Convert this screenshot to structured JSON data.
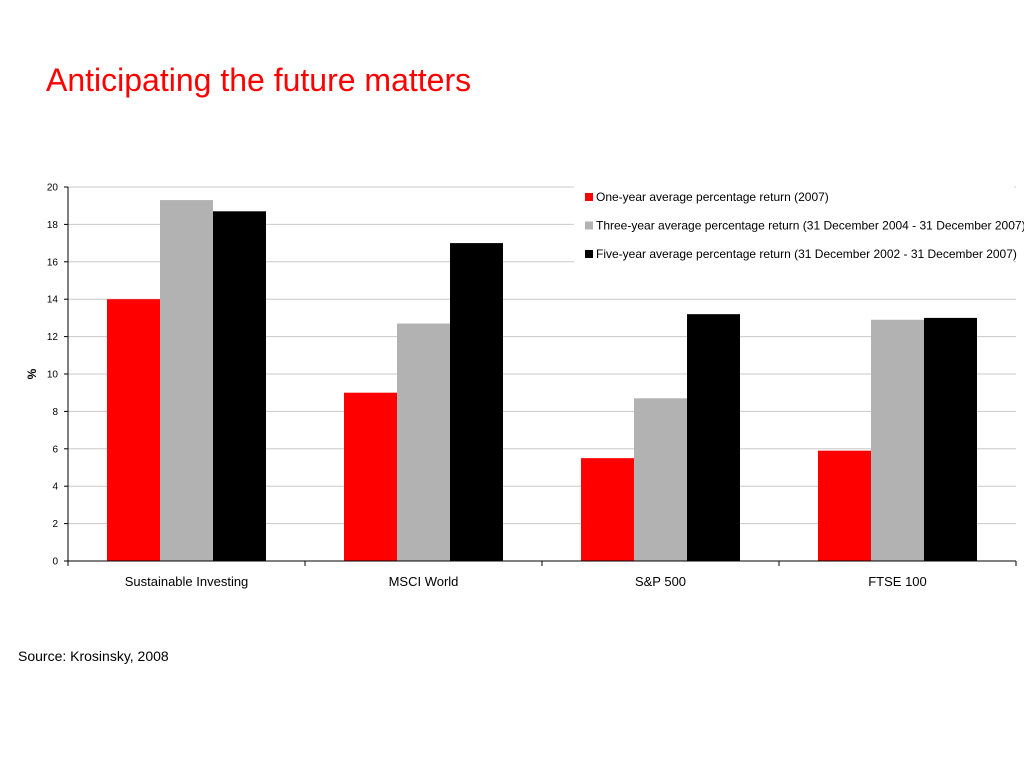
{
  "page": {
    "title": "Anticipating the future matters",
    "source": "Source: Krosinsky, 2008"
  },
  "colors": {
    "title": "#ff0000",
    "series": [
      "#ff0000",
      "#b2b2b2",
      "#000000"
    ]
  },
  "chart_data": {
    "type": "bar",
    "title": "",
    "xlabel": "",
    "ylabel": "%",
    "ylim": [
      0,
      20
    ],
    "yticks": [
      0,
      2,
      4,
      6,
      8,
      10,
      12,
      14,
      16,
      18,
      20
    ],
    "grid": true,
    "legend_position": "top-right",
    "categories": [
      "Sustainable Investing",
      "MSCI World",
      "S&P 500",
      "FTSE 100"
    ],
    "series": [
      {
        "name": "One-year average percentage return (2007)",
        "values": [
          14,
          9,
          5.5,
          5.9
        ]
      },
      {
        "name": "Three-year average percentage return (31 December 2004 - 31 December 2007)",
        "values": [
          19.3,
          12.7,
          8.7,
          12.9
        ]
      },
      {
        "name": "Five-year average percentage return (31 December 2002 - 31 December 2007)",
        "values": [
          18.7,
          17,
          13.2,
          13
        ]
      }
    ]
  }
}
